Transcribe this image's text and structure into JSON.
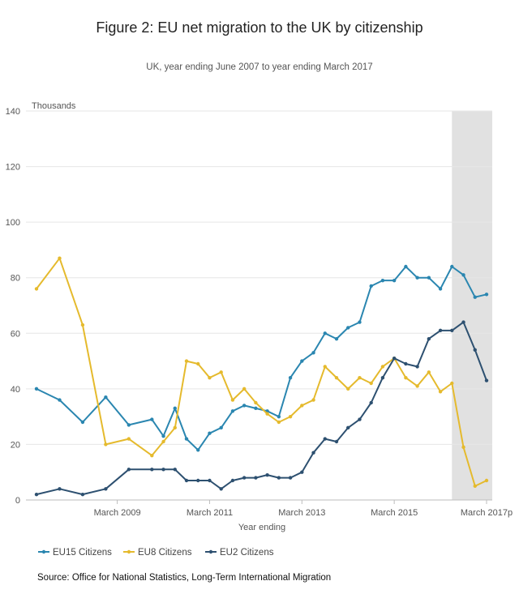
{
  "title": "Figure 2: EU net migration to the UK by citizenship",
  "subtitle": "UK, year ending June 2007 to year ending March 2017",
  "source": "Source: Office for National Statistics, Long-Term International Migration",
  "chart_data": {
    "type": "line",
    "ylabel": "Thousands",
    "xlabel": "Year ending",
    "ylim": [
      0,
      140
    ],
    "yticks": [
      0,
      20,
      40,
      60,
      80,
      100,
      120,
      140
    ],
    "grid": true,
    "legend_position": "bottom-left",
    "shaded_region_start_index": 36,
    "point_count": 40,
    "x_tick_labels": [
      {
        "index": 7,
        "label": "March 2009"
      },
      {
        "index": 15,
        "label": "March 2011"
      },
      {
        "index": 23,
        "label": "March 2013"
      },
      {
        "index": 31,
        "label": "March 2015"
      },
      {
        "index": 39,
        "label": "March 2017p"
      }
    ],
    "series": [
      {
        "name": "EU15 Citizens",
        "color": "#2A86B0",
        "values": [
          40,
          36,
          28,
          37,
          27,
          29,
          23,
          33,
          22,
          18,
          24,
          26,
          32,
          34,
          33,
          32,
          30,
          44,
          50,
          53,
          60,
          58,
          62,
          64,
          77,
          79,
          79,
          84,
          80,
          80,
          76,
          84,
          81,
          73,
          74
        ],
        "x_index_offset": 0,
        "x_indices": [
          0,
          2,
          4,
          6,
          8,
          10,
          11,
          12,
          13,
          14,
          15,
          16,
          17,
          18,
          19,
          20,
          21,
          22,
          23,
          24,
          25,
          26,
          27,
          28,
          29,
          30,
          31,
          32,
          33,
          34,
          35,
          36,
          37,
          38,
          39
        ]
      },
      {
        "name": "EU8 Citizens",
        "color": "#E5BA2D",
        "values": [
          76,
          87,
          63,
          20,
          22,
          16,
          21,
          26,
          50,
          49,
          44,
          46,
          36,
          40,
          35,
          31,
          28,
          30,
          34,
          36,
          48,
          44,
          40,
          44,
          42,
          48,
          51,
          44,
          41,
          46,
          39,
          42,
          19,
          5,
          7
        ],
        "x_indices": [
          0,
          2,
          4,
          6,
          8,
          10,
          11,
          12,
          13,
          14,
          15,
          16,
          17,
          18,
          19,
          20,
          21,
          22,
          23,
          24,
          25,
          26,
          27,
          28,
          29,
          30,
          31,
          32,
          33,
          34,
          35,
          36,
          37,
          38,
          39
        ]
      },
      {
        "name": "EU2 Citizens",
        "color": "#2D5070",
        "values": [
          2,
          4,
          2,
          4,
          11,
          11,
          11,
          11,
          7,
          7,
          7,
          4,
          7,
          8,
          8,
          9,
          8,
          8,
          10,
          17,
          22,
          21,
          26,
          29,
          35,
          44,
          51,
          49,
          48,
          58,
          61,
          61,
          64,
          54,
          43
        ],
        "x_indices": [
          0,
          2,
          4,
          6,
          8,
          10,
          11,
          12,
          13,
          14,
          15,
          16,
          17,
          18,
          19,
          20,
          21,
          22,
          23,
          24,
          25,
          26,
          27,
          28,
          29,
          30,
          31,
          32,
          33,
          34,
          35,
          36,
          37,
          38,
          39
        ]
      }
    ]
  }
}
